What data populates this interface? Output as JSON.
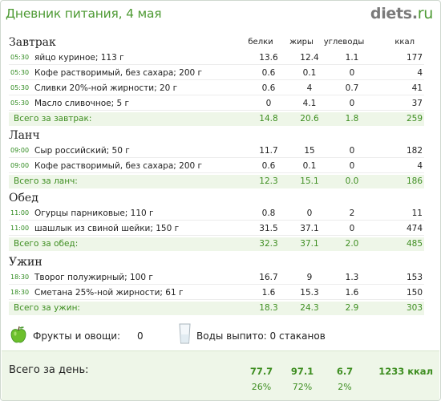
{
  "header": {
    "title": "Дневник питания, 4 мая",
    "logo_main": "diets",
    "logo_dot": ".",
    "logo_tld": "ru"
  },
  "columns": {
    "protein": "белки",
    "fat": "жиры",
    "carbs": "углеводы",
    "kcal": "ккал"
  },
  "meals": [
    {
      "title": "Завтрак",
      "items": [
        {
          "time": "05:30",
          "name": "яйцо куриное; 113 г",
          "p": "13.6",
          "f": "12.4",
          "c": "1.1",
          "k": "177"
        },
        {
          "time": "05:30",
          "name": "Кофе растворимый, без сахара; 200 г",
          "p": "0.6",
          "f": "0.1",
          "c": "0",
          "k": "4"
        },
        {
          "time": "05:30",
          "name": "Сливки 20%-ной жирности; 20 г",
          "p": "0.6",
          "f": "4",
          "c": "0.7",
          "k": "41"
        },
        {
          "time": "05:30",
          "name": "Масло сливочное; 5 г",
          "p": "0",
          "f": "4.1",
          "c": "0",
          "k": "37"
        }
      ],
      "total": {
        "label": "Всего за завтрак:",
        "p": "14.8",
        "f": "20.6",
        "c": "1.8",
        "k": "259"
      }
    },
    {
      "title": "Ланч",
      "items": [
        {
          "time": "09:00",
          "name": "Сыр российский; 50 г",
          "p": "11.7",
          "f": "15",
          "c": "0",
          "k": "182"
        },
        {
          "time": "09:00",
          "name": "Кофе растворимый, без сахара; 200 г",
          "p": "0.6",
          "f": "0.1",
          "c": "0",
          "k": "4"
        }
      ],
      "total": {
        "label": "Всего за ланч:",
        "p": "12.3",
        "f": "15.1",
        "c": "0.0",
        "k": "186"
      }
    },
    {
      "title": "Обед",
      "items": [
        {
          "time": "11:00",
          "name": "Огурцы парниковые; 110 г",
          "p": "0.8",
          "f": "0",
          "c": "2",
          "k": "11"
        },
        {
          "time": "11:00",
          "name": "шашлык из свиной шейки; 150 г",
          "p": "31.5",
          "f": "37.1",
          "c": "0",
          "k": "474"
        }
      ],
      "total": {
        "label": "Всего за обед:",
        "p": "32.3",
        "f": "37.1",
        "c": "2.0",
        "k": "485"
      }
    },
    {
      "title": "Ужин",
      "items": [
        {
          "time": "18:30",
          "name": "Творог полужирный; 100 г",
          "p": "16.7",
          "f": "9",
          "c": "1.3",
          "k": "153"
        },
        {
          "time": "18:30",
          "name": "Сметана 25%-ной жирности; 61 г",
          "p": "1.6",
          "f": "15.3",
          "c": "1.6",
          "k": "150"
        }
      ],
      "total": {
        "label": "Всего за ужин:",
        "p": "18.3",
        "f": "24.3",
        "c": "2.9",
        "k": "303"
      }
    }
  ],
  "extras": {
    "fruits_label": "Фрукты и овощи:",
    "fruits_value": "0",
    "water_text": "Воды выпито: 0 стаканов"
  },
  "day": {
    "label": "Всего за день:",
    "p": "77.7",
    "f": "97.1",
    "c": "6.7",
    "k": "1233 ккал",
    "pp": "26%",
    "fp": "72%",
    "cp": "2%"
  },
  "colors": {
    "accent": "#4d9a33",
    "total_bg": "#eef6e8"
  }
}
